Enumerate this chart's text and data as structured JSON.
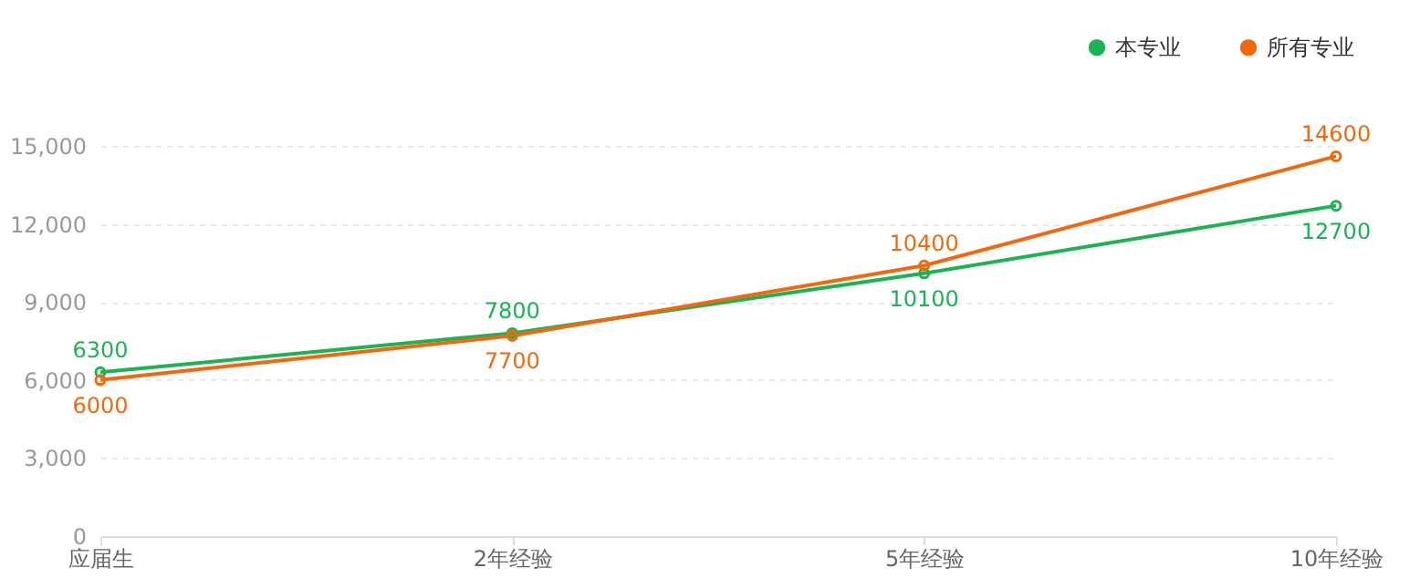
{
  "chart_data": {
    "type": "line",
    "categories": [
      "应届生",
      "2年经验",
      "5年经验",
      "10年经验"
    ],
    "series": [
      {
        "name": "本专业",
        "color": "#1db354",
        "values": [
          6300,
          7800,
          10100,
          12700
        ]
      },
      {
        "name": "所有专业",
        "color": "#f0690f",
        "values": [
          6000,
          7700,
          10400,
          14600
        ]
      }
    ],
    "ylim": [
      0,
      15000
    ],
    "yticks": [
      0,
      {
        "value": 3000,
        "label": "3,000"
      },
      {
        "value": 6000,
        "label": "6,000"
      },
      {
        "value": 9000,
        "label": "9,000"
      },
      {
        "value": 12000,
        "label": "12,000"
      },
      {
        "value": 15000,
        "label": "15,000"
      }
    ],
    "grid": "y",
    "legend": "top right",
    "marker": "circle",
    "line_style": "solid",
    "data_labels": true
  }
}
